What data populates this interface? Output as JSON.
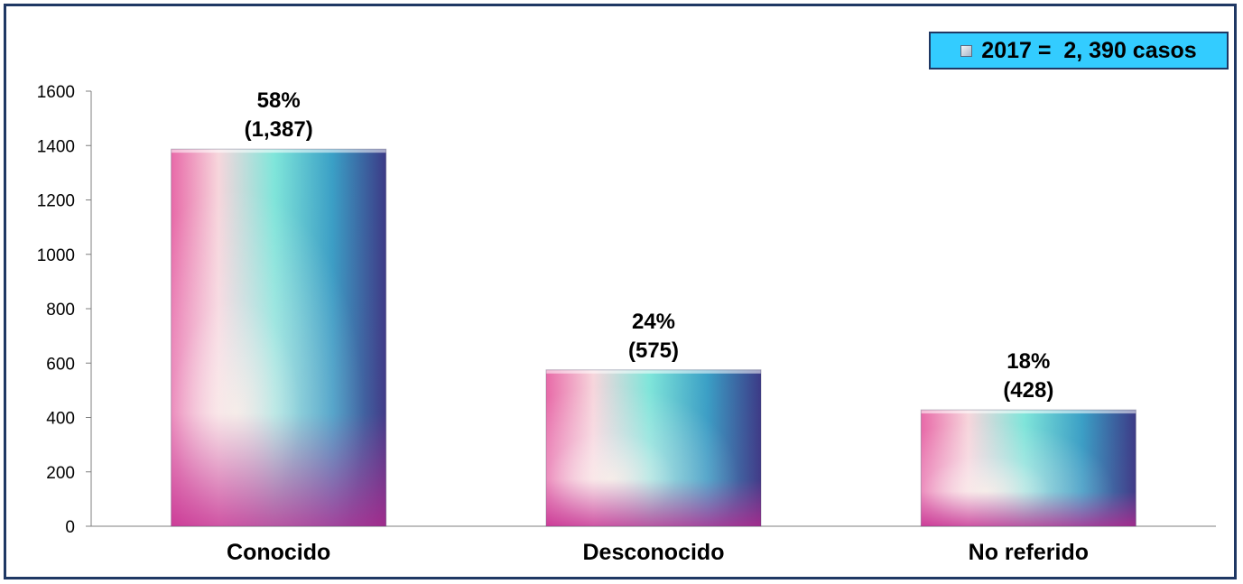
{
  "chart_data": {
    "type": "bar",
    "categories": [
      "Conocido",
      "Desconocido",
      "No referido"
    ],
    "values": [
      1387,
      575,
      428
    ],
    "data_labels": [
      {
        "percent": "58%",
        "count": "(1,387)"
      },
      {
        "percent": "24%",
        "count": "(575)"
      },
      {
        "percent": "18%",
        "count": "(428)"
      }
    ],
    "series": [
      {
        "name": "2017 =  2, 390 casos",
        "values": [
          1387,
          575,
          428
        ]
      }
    ],
    "ylim": [
      0,
      1600
    ],
    "yticks": [
      0,
      200,
      400,
      600,
      800,
      1000,
      1200,
      1400,
      1600
    ],
    "legend_position": "top-right",
    "grid": false
  },
  "colors": {
    "frame_border": "#1f3864",
    "legend_background": "#33ccff",
    "bar_gradient": [
      "#d63a9c",
      "#f9b8c8",
      "#f8f4e6",
      "#5fe0d6",
      "#2f8fc0",
      "#3a2f7c"
    ]
  }
}
